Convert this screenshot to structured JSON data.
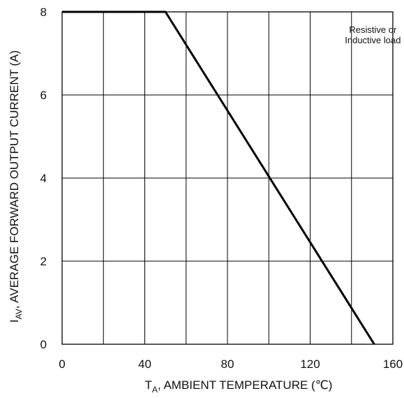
{
  "chart_data": {
    "type": "line",
    "title": "",
    "xlabel": {
      "symbol": "T",
      "subscript": "A",
      "text": ", AMBIENT TEMPERATURE (℃)"
    },
    "ylabel": {
      "symbol": "I",
      "subscript": "AV",
      "text": ", AVERAGE FORWARD OUTPUT CURRENT (A)"
    },
    "xlim": [
      0,
      160
    ],
    "ylim": [
      0,
      8
    ],
    "x_ticks": [
      0,
      40,
      80,
      120,
      160
    ],
    "x_tick_labels": [
      "0",
      "40",
      "80",
      "120",
      "160"
    ],
    "y_ticks": [
      0,
      2,
      4,
      6,
      8
    ],
    "y_tick_labels": [
      "0",
      "2",
      "4",
      "6",
      "8"
    ],
    "x_gridlines": [
      0,
      20,
      40,
      60,
      80,
      100,
      120,
      140,
      160
    ],
    "y_gridlines": [
      0,
      2,
      4,
      6,
      8
    ],
    "grid": true,
    "annotation": {
      "lines": [
        "Resistive or",
        "Inductive load"
      ],
      "placement": "top-right"
    },
    "series": [
      {
        "color": "#000000",
        "points": [
          {
            "x": 0,
            "y": 8
          },
          {
            "x": 50,
            "y": 8
          },
          {
            "x": 151,
            "y": 0
          }
        ]
      }
    ]
  }
}
